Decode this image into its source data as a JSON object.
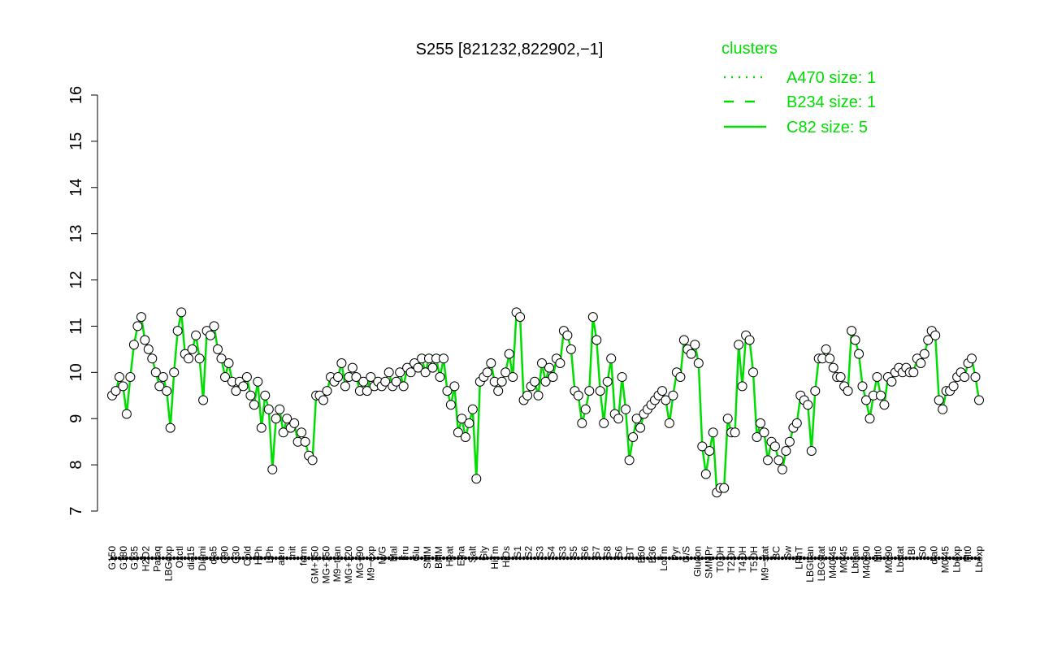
{
  "chart_data": {
    "type": "line",
    "title": "S255 [821232,822902,−1]",
    "xlabel": "",
    "ylabel": "",
    "ylim": [
      7,
      16
    ],
    "yticks": [
      7,
      8,
      9,
      10,
      11,
      12,
      13,
      14,
      15,
      16
    ],
    "grid": false,
    "legend": {
      "title": "clusters",
      "placement": "top-right",
      "color": "#00dd00",
      "entries": [
        {
          "label": "A470 size: 1",
          "style": "dotted"
        },
        {
          "label": "B234 size: 1",
          "style": "dashed"
        },
        {
          "label": "C82 size: 5",
          "style": "solid"
        }
      ]
    },
    "x_tick_labels": [
      "G150",
      "G180",
      "G135",
      "H2O2",
      "Paraq",
      "LBGexp",
      "Oxctl",
      "dia15",
      "Diami",
      "dia5",
      "C90",
      "C30",
      "Cold",
      "HPh",
      "LPh",
      "aero",
      "nit",
      "ferm",
      "GM+150",
      "MG+150",
      "M9−tran",
      "MG+120",
      "MG+90",
      "M9−exp",
      "M/G",
      "Mal",
      "Fru",
      "Glu",
      "SMM",
      "BMM",
      "Heat",
      "Etha",
      "Salt",
      "Gly",
      "HiTm",
      "HiOs",
      "S1",
      "S2",
      "S3",
      "S4",
      "S3",
      "S5",
      "S6",
      "S7",
      "S8",
      "S6",
      "BT",
      "B60",
      "B36",
      "LoTm",
      "Pyr",
      "G/S",
      "Glucon",
      "SMMPr",
      "T0.0H",
      "T2.0H",
      "T4.0H",
      "T5.0H",
      "M9−stat",
      "BC",
      "Sw",
      "LPhT",
      "LBGtran",
      "LBGstat",
      "M40t45",
      "M0t45",
      "Lbtran",
      "M40t90",
      "Mt0",
      "M0t90",
      "Lbstat",
      "BI",
      "S0",
      "dia0",
      "M0t45",
      "Lbexp",
      "Mt0",
      "Lbexp"
    ],
    "series": [
      {
        "values": [
          9.5,
          9.6,
          9.9,
          9.7,
          9.1,
          9.9,
          10.6,
          11.0,
          11.2,
          10.7,
          10.5,
          10.3,
          10.0,
          9.7,
          9.9,
          9.6,
          8.8,
          10.0,
          10.9,
          11.3,
          10.4,
          10.3,
          10.5,
          10.8,
          10.3,
          9.4,
          10.9,
          10.8,
          11.0,
          10.5,
          10.3,
          9.9,
          10.2,
          9.8,
          9.6,
          9.8,
          9.7,
          9.9,
          9.5,
          9.3,
          9.8,
          8.8,
          9.5,
          9.2,
          7.9,
          9.0,
          9.2,
          8.7,
          9.0,
          8.8,
          8.9,
          8.5,
          8.7,
          8.5,
          8.2,
          8.1,
          9.5,
          9.5,
          9.4,
          9.6,
          9.9,
          9.8,
          9.9,
          10.2,
          9.7,
          9.9,
          10.1,
          9.9,
          9.6,
          9.8,
          9.6,
          9.9,
          9.7,
          9.8,
          9.7,
          9.8,
          10.0,
          9.7,
          9.8,
          10.0,
          9.7,
          10.1,
          10.0,
          10.2,
          10.1,
          10.3,
          10.0,
          10.3,
          10.1,
          10.3,
          9.9,
          10.3,
          9.6,
          9.3,
          9.7,
          8.7,
          9.0,
          8.6,
          8.9,
          9.2,
          7.7,
          9.8,
          9.9,
          10.0,
          10.2,
          9.8,
          9.6,
          9.8,
          10.0,
          10.4,
          9.9,
          11.3,
          11.2,
          9.4,
          9.5,
          9.7,
          9.8,
          9.5,
          10.2,
          9.8,
          10.1,
          9.9,
          10.3,
          10.2,
          10.9,
          10.8,
          10.5,
          9.6,
          9.5,
          8.9,
          9.2,
          9.6,
          11.2,
          10.7,
          9.6,
          8.9,
          9.8,
          10.3,
          9.1,
          9.0,
          9.9,
          9.2,
          8.1,
          8.6,
          9.0,
          8.8,
          9.1,
          9.2,
          9.3,
          9.4,
          9.5,
          9.6,
          9.4,
          8.9,
          9.5,
          10.0,
          9.9,
          10.7,
          10.5,
          10.4,
          10.6,
          10.2,
          8.4,
          7.8,
          8.3,
          8.7,
          7.4,
          7.5,
          7.5,
          9.0,
          8.7,
          8.7,
          10.6,
          9.7,
          10.8,
          10.7,
          10.0,
          8.6,
          8.9,
          8.7,
          8.1,
          8.5,
          8.4,
          8.1,
          7.9,
          8.3,
          8.5,
          8.8,
          8.9,
          9.5,
          9.4,
          9.3,
          8.3,
          9.6,
          10.3,
          10.3,
          10.5,
          10.3,
          10.1,
          9.9,
          9.9,
          9.7,
          9.6,
          10.9,
          10.7,
          10.4,
          9.7,
          9.4,
          9.0,
          9.5,
          9.9,
          9.5,
          9.3,
          9.9,
          9.8,
          10.0,
          10.1,
          10.0,
          10.1,
          10.0,
          10.0,
          10.3,
          10.2,
          10.4,
          10.7,
          10.9,
          10.8,
          9.4,
          9.2,
          9.6,
          9.6,
          9.7,
          9.9,
          10.0,
          9.9,
          10.2,
          10.3,
          9.9,
          9.4
        ]
      }
    ]
  }
}
